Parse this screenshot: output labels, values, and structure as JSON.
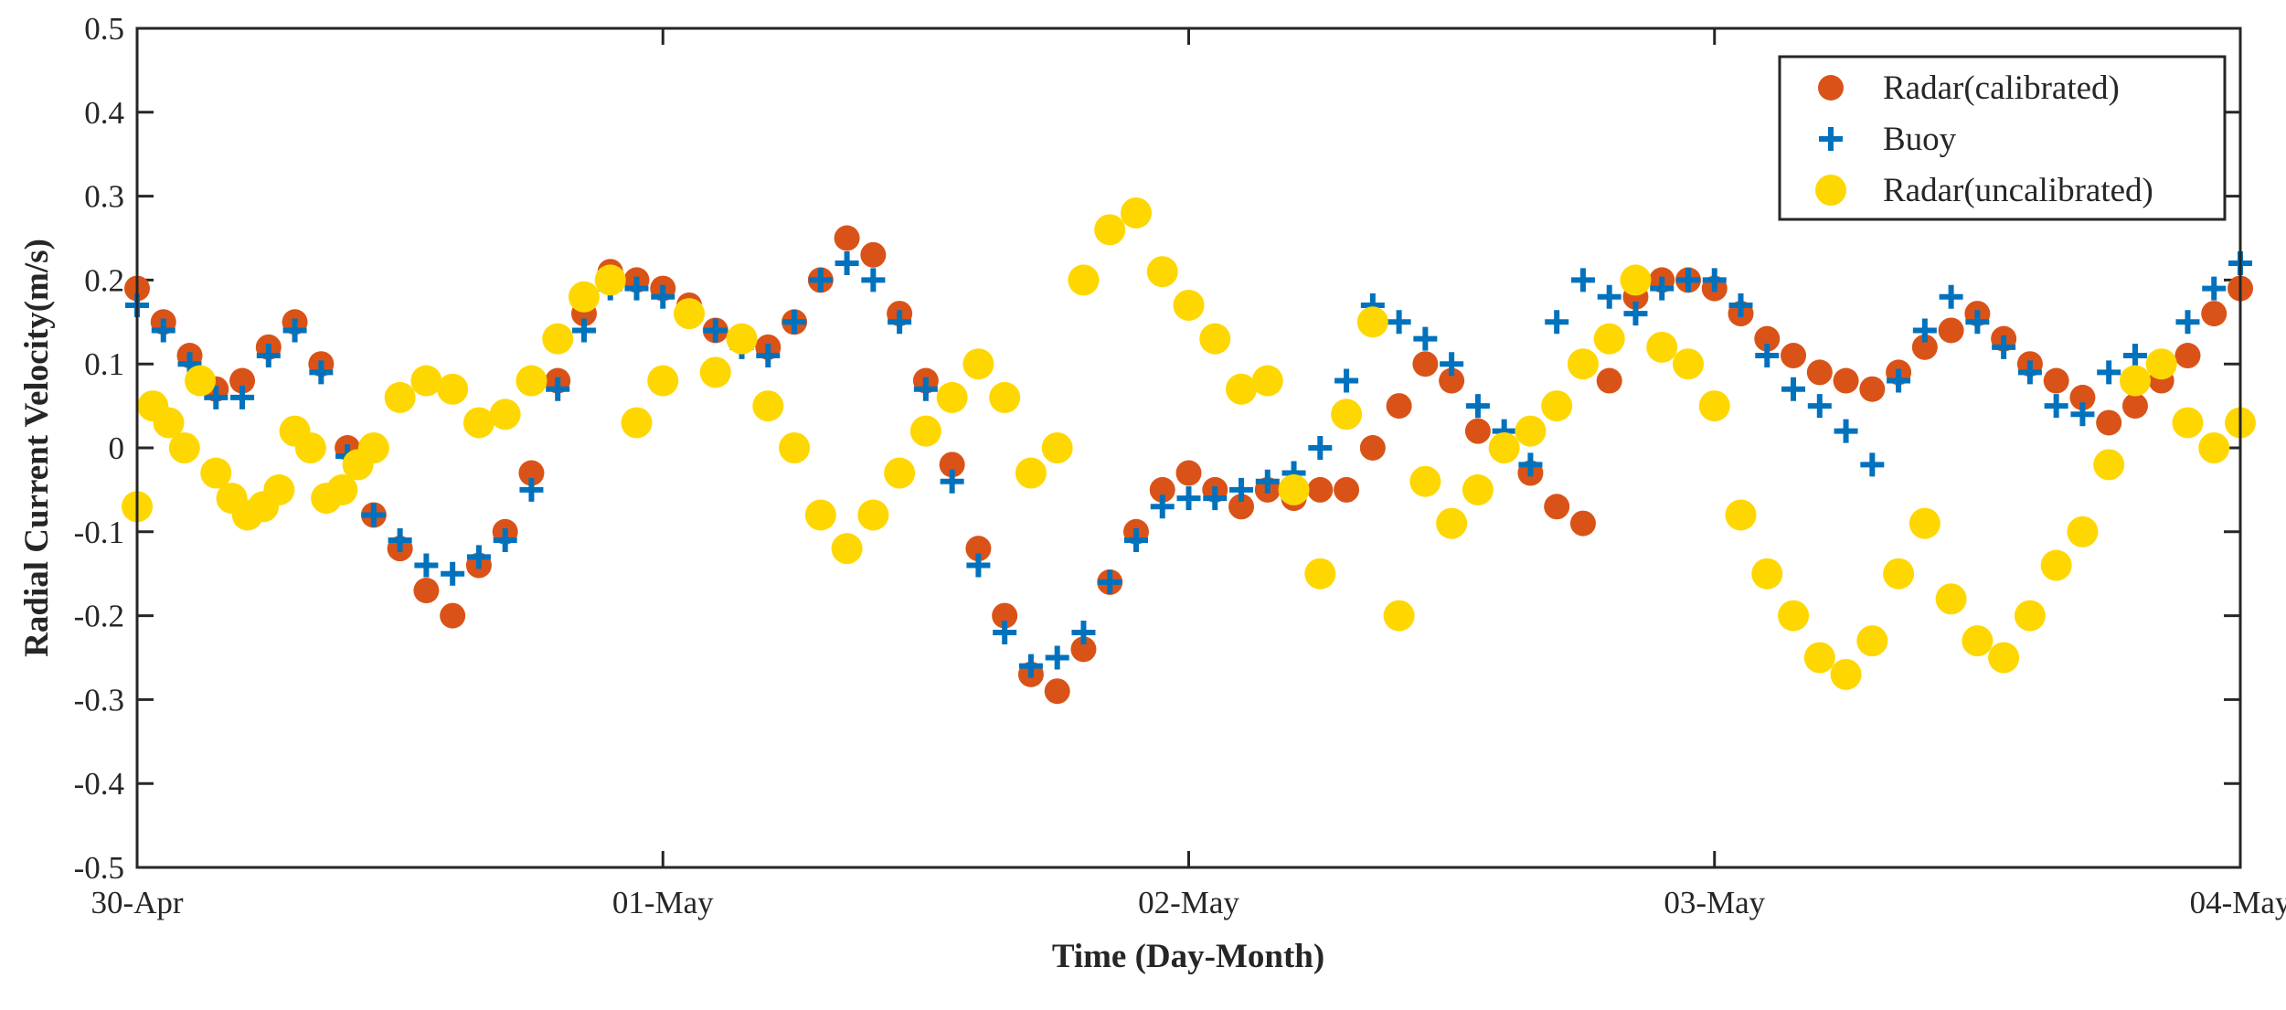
{
  "chart_data": {
    "type": "scatter",
    "title": "",
    "xlabel": "Time (Day-Month)",
    "ylabel": "Radial Current Velocity(m/s)",
    "xlim": [
      0,
      4
    ],
    "ylim": [
      -0.5,
      0.5
    ],
    "x_unit": "days since 30-Apr 00:00",
    "x_ticks": [
      0,
      1,
      2,
      3,
      4
    ],
    "x_tick_labels": [
      "30-Apr",
      "01-May",
      "02-May",
      "03-May",
      "04-May"
    ],
    "y_ticks": [
      -0.5,
      -0.4,
      -0.3,
      -0.2,
      -0.1,
      0,
      0.1,
      0.2,
      0.3,
      0.4,
      0.5
    ],
    "y_tick_labels": [
      "-0.5",
      "-0.4",
      "-0.3",
      "-0.2",
      "-0.1",
      "0",
      "0.1",
      "0.2",
      "0.3",
      "0.4",
      "0.5"
    ],
    "legend_position": "top-right",
    "series": [
      {
        "name": "Radar(calibrated)",
        "marker": "circle",
        "color": "#D95319",
        "points": [
          [
            0.0,
            0.19
          ],
          [
            0.05,
            0.15
          ],
          [
            0.1,
            0.11
          ],
          [
            0.15,
            0.07
          ],
          [
            0.2,
            0.08
          ],
          [
            0.25,
            0.12
          ],
          [
            0.3,
            0.15
          ],
          [
            0.35,
            0.1
          ],
          [
            0.4,
            0.0
          ],
          [
            0.45,
            -0.08
          ],
          [
            0.5,
            -0.12
          ],
          [
            0.55,
            -0.17
          ],
          [
            0.6,
            -0.2
          ],
          [
            0.65,
            -0.14
          ],
          [
            0.7,
            -0.1
          ],
          [
            0.75,
            -0.03
          ],
          [
            0.8,
            0.08
          ],
          [
            0.85,
            0.16
          ],
          [
            0.9,
            0.21
          ],
          [
            0.95,
            0.2
          ],
          [
            1.0,
            0.19
          ],
          [
            1.05,
            0.17
          ],
          [
            1.1,
            0.14
          ],
          [
            1.15,
            0.13
          ],
          [
            1.2,
            0.12
          ],
          [
            1.25,
            0.15
          ],
          [
            1.3,
            0.2
          ],
          [
            1.35,
            0.25
          ],
          [
            1.4,
            0.23
          ],
          [
            1.45,
            0.16
          ],
          [
            1.5,
            0.08
          ],
          [
            1.55,
            -0.02
          ],
          [
            1.6,
            -0.12
          ],
          [
            1.65,
            -0.2
          ],
          [
            1.7,
            -0.27
          ],
          [
            1.75,
            -0.29
          ],
          [
            1.8,
            -0.24
          ],
          [
            1.85,
            -0.16
          ],
          [
            1.9,
            -0.1
          ],
          [
            1.95,
            -0.05
          ],
          [
            2.0,
            -0.03
          ],
          [
            2.05,
            -0.05
          ],
          [
            2.1,
            -0.07
          ],
          [
            2.15,
            -0.05
          ],
          [
            2.2,
            -0.06
          ],
          [
            2.25,
            -0.05
          ],
          [
            2.3,
            -0.05
          ],
          [
            2.35,
            0.0
          ],
          [
            2.4,
            0.05
          ],
          [
            2.45,
            0.1
          ],
          [
            2.5,
            0.08
          ],
          [
            2.55,
            0.02
          ],
          [
            2.6,
            0.0
          ],
          [
            2.65,
            -0.03
          ],
          [
            2.7,
            -0.07
          ],
          [
            2.75,
            -0.09
          ],
          [
            2.8,
            0.08
          ],
          [
            2.85,
            0.18
          ],
          [
            2.9,
            0.2
          ],
          [
            2.95,
            0.2
          ],
          [
            3.0,
            0.19
          ],
          [
            3.05,
            0.16
          ],
          [
            3.1,
            0.13
          ],
          [
            3.15,
            0.11
          ],
          [
            3.2,
            0.09
          ],
          [
            3.25,
            0.08
          ],
          [
            3.3,
            0.07
          ],
          [
            3.35,
            0.09
          ],
          [
            3.4,
            0.12
          ],
          [
            3.45,
            0.14
          ],
          [
            3.5,
            0.16
          ],
          [
            3.55,
            0.13
          ],
          [
            3.6,
            0.1
          ],
          [
            3.65,
            0.08
          ],
          [
            3.7,
            0.06
          ],
          [
            3.75,
            0.03
          ],
          [
            3.8,
            0.05
          ],
          [
            3.85,
            0.08
          ],
          [
            3.9,
            0.11
          ],
          [
            3.95,
            0.16
          ],
          [
            4.0,
            0.19
          ]
        ]
      },
      {
        "name": "Buoy",
        "marker": "plus",
        "color": "#0072BD",
        "points": [
          [
            0.0,
            0.17
          ],
          [
            0.05,
            0.14
          ],
          [
            0.1,
            0.1
          ],
          [
            0.15,
            0.06
          ],
          [
            0.2,
            0.06
          ],
          [
            0.25,
            0.11
          ],
          [
            0.3,
            0.14
          ],
          [
            0.35,
            0.09
          ],
          [
            0.4,
            -0.01
          ],
          [
            0.45,
            -0.08
          ],
          [
            0.5,
            -0.11
          ],
          [
            0.55,
            -0.14
          ],
          [
            0.6,
            -0.15
          ],
          [
            0.65,
            -0.13
          ],
          [
            0.7,
            -0.11
          ],
          [
            0.75,
            -0.05
          ],
          [
            0.8,
            0.07
          ],
          [
            0.85,
            0.14
          ],
          [
            0.9,
            0.19
          ],
          [
            0.95,
            0.19
          ],
          [
            1.0,
            0.18
          ],
          [
            1.05,
            0.16
          ],
          [
            1.1,
            0.14
          ],
          [
            1.15,
            0.12
          ],
          [
            1.2,
            0.11
          ],
          [
            1.25,
            0.15
          ],
          [
            1.3,
            0.2
          ],
          [
            1.35,
            0.22
          ],
          [
            1.4,
            0.2
          ],
          [
            1.45,
            0.15
          ],
          [
            1.5,
            0.07
          ],
          [
            1.55,
            -0.04
          ],
          [
            1.6,
            -0.14
          ],
          [
            1.65,
            -0.22
          ],
          [
            1.7,
            -0.26
          ],
          [
            1.75,
            -0.25
          ],
          [
            1.8,
            -0.22
          ],
          [
            1.85,
            -0.16
          ],
          [
            1.9,
            -0.11
          ],
          [
            1.95,
            -0.07
          ],
          [
            2.0,
            -0.06
          ],
          [
            2.05,
            -0.06
          ],
          [
            2.1,
            -0.05
          ],
          [
            2.15,
            -0.04
          ],
          [
            2.2,
            -0.03
          ],
          [
            2.25,
            0.0
          ],
          [
            2.3,
            0.08
          ],
          [
            2.35,
            0.17
          ],
          [
            2.4,
            0.15
          ],
          [
            2.45,
            0.13
          ],
          [
            2.5,
            0.1
          ],
          [
            2.55,
            0.05
          ],
          [
            2.6,
            0.02
          ],
          [
            2.65,
            -0.02
          ],
          [
            2.7,
            0.15
          ],
          [
            2.75,
            0.2
          ],
          [
            2.8,
            0.18
          ],
          [
            2.85,
            0.16
          ],
          [
            2.9,
            0.19
          ],
          [
            2.95,
            0.2
          ],
          [
            3.0,
            0.2
          ],
          [
            3.05,
            0.17
          ],
          [
            3.1,
            0.11
          ],
          [
            3.15,
            0.07
          ],
          [
            3.2,
            0.05
          ],
          [
            3.25,
            0.02
          ],
          [
            3.3,
            -0.02
          ],
          [
            3.35,
            0.08
          ],
          [
            3.4,
            0.14
          ],
          [
            3.45,
            0.18
          ],
          [
            3.5,
            0.15
          ],
          [
            3.55,
            0.12
          ],
          [
            3.6,
            0.09
          ],
          [
            3.65,
            0.05
          ],
          [
            3.7,
            0.04
          ],
          [
            3.75,
            0.09
          ],
          [
            3.8,
            0.11
          ],
          [
            3.85,
            0.1
          ],
          [
            3.9,
            0.15
          ],
          [
            3.95,
            0.19
          ],
          [
            4.0,
            0.22
          ]
        ]
      },
      {
        "name": "Radar(uncalibrated)",
        "marker": "circle",
        "color": "#FFD700",
        "points": [
          [
            0.0,
            -0.07
          ],
          [
            0.03,
            0.05
          ],
          [
            0.06,
            0.03
          ],
          [
            0.09,
            0.0
          ],
          [
            0.12,
            0.08
          ],
          [
            0.15,
            -0.03
          ],
          [
            0.18,
            -0.06
          ],
          [
            0.21,
            -0.08
          ],
          [
            0.24,
            -0.07
          ],
          [
            0.27,
            -0.05
          ],
          [
            0.3,
            0.02
          ],
          [
            0.33,
            0.0
          ],
          [
            0.36,
            -0.06
          ],
          [
            0.39,
            -0.05
          ],
          [
            0.42,
            -0.02
          ],
          [
            0.45,
            0.0
          ],
          [
            0.5,
            0.06
          ],
          [
            0.55,
            0.08
          ],
          [
            0.6,
            0.07
          ],
          [
            0.65,
            0.03
          ],
          [
            0.7,
            0.04
          ],
          [
            0.75,
            0.08
          ],
          [
            0.8,
            0.13
          ],
          [
            0.85,
            0.18
          ],
          [
            0.9,
            0.2
          ],
          [
            0.95,
            0.03
          ],
          [
            1.0,
            0.08
          ],
          [
            1.05,
            0.16
          ],
          [
            1.1,
            0.09
          ],
          [
            1.15,
            0.13
          ],
          [
            1.2,
            0.05
          ],
          [
            1.25,
            0.0
          ],
          [
            1.3,
            -0.08
          ],
          [
            1.35,
            -0.12
          ],
          [
            1.4,
            -0.08
          ],
          [
            1.45,
            -0.03
          ],
          [
            1.5,
            0.02
          ],
          [
            1.55,
            0.06
          ],
          [
            1.6,
            0.1
          ],
          [
            1.65,
            0.06
          ],
          [
            1.7,
            -0.03
          ],
          [
            1.75,
            0.0
          ],
          [
            1.8,
            0.2
          ],
          [
            1.85,
            0.26
          ],
          [
            1.9,
            0.28
          ],
          [
            1.95,
            0.21
          ],
          [
            2.0,
            0.17
          ],
          [
            2.05,
            0.13
          ],
          [
            2.1,
            0.07
          ],
          [
            2.15,
            0.08
          ],
          [
            2.2,
            -0.05
          ],
          [
            2.25,
            -0.15
          ],
          [
            2.3,
            0.04
          ],
          [
            2.35,
            0.15
          ],
          [
            2.4,
            -0.2
          ],
          [
            2.45,
            -0.04
          ],
          [
            2.5,
            -0.09
          ],
          [
            2.55,
            -0.05
          ],
          [
            2.6,
            0.0
          ],
          [
            2.65,
            0.02
          ],
          [
            2.7,
            0.05
          ],
          [
            2.75,
            0.1
          ],
          [
            2.8,
            0.13
          ],
          [
            2.85,
            0.2
          ],
          [
            2.9,
            0.12
          ],
          [
            2.95,
            0.1
          ],
          [
            3.0,
            0.05
          ],
          [
            3.05,
            -0.08
          ],
          [
            3.1,
            -0.15
          ],
          [
            3.15,
            -0.2
          ],
          [
            3.2,
            -0.25
          ],
          [
            3.25,
            -0.27
          ],
          [
            3.3,
            -0.23
          ],
          [
            3.35,
            -0.15
          ],
          [
            3.4,
            -0.09
          ],
          [
            3.45,
            -0.18
          ],
          [
            3.5,
            -0.23
          ],
          [
            3.55,
            -0.25
          ],
          [
            3.6,
            -0.2
          ],
          [
            3.65,
            -0.14
          ],
          [
            3.7,
            -0.1
          ],
          [
            3.75,
            -0.02
          ],
          [
            3.8,
            0.08
          ],
          [
            3.85,
            0.1
          ],
          [
            3.9,
            0.03
          ],
          [
            3.95,
            0.0
          ],
          [
            4.0,
            0.03
          ]
        ]
      }
    ]
  }
}
